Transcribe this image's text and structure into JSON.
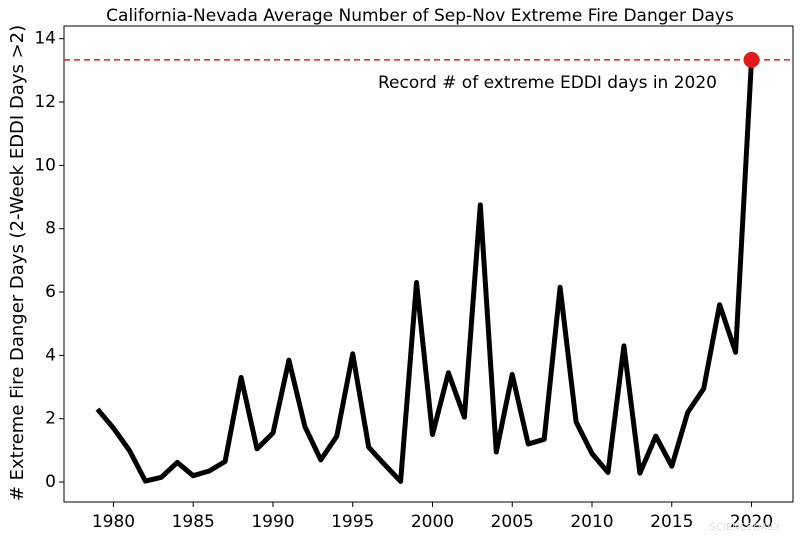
{
  "chart_data": {
    "type": "line",
    "title": "California-Nevada Average Number of Sep-Nov Extreme Fire Danger Days",
    "y_label": "# Extreme Fire Danger Days (2-Week EDDI Days >2)",
    "x": [
      1979,
      1980,
      1981,
      1982,
      1983,
      1984,
      1985,
      1986,
      1987,
      1988,
      1989,
      1990,
      1991,
      1992,
      1993,
      1994,
      1995,
      1996,
      1997,
      1998,
      1999,
      2000,
      2001,
      2002,
      2003,
      2004,
      2005,
      2006,
      2007,
      2008,
      2009,
      2010,
      2011,
      2012,
      2013,
      2014,
      2015,
      2016,
      2017,
      2018,
      2019,
      2020
    ],
    "series": [
      {
        "color": "#000000",
        "values": [
          2.3,
          1.7,
          1.0,
          0.03,
          0.15,
          0.62,
          0.2,
          0.35,
          0.65,
          3.3,
          1.05,
          1.55,
          3.85,
          1.75,
          0.7,
          1.45,
          4.05,
          1.1,
          0.55,
          0.02,
          6.3,
          1.5,
          3.45,
          2.05,
          8.75,
          0.95,
          3.4,
          1.2,
          1.35,
          6.15,
          1.9,
          0.9,
          0.3,
          4.3,
          0.28,
          1.45,
          0.5,
          2.2,
          2.95,
          5.6,
          4.1,
          13.33
        ]
      }
    ],
    "highlight_color": "#e31a1c",
    "reference_line": {
      "value": 13.33,
      "color": "#d62728",
      "label": "Record # of extreme EDDI days in 2020"
    },
    "xlim": [
      1976.9,
      2022.6
    ],
    "ylim": [
      -0.63,
      14.4
    ],
    "xticks": [
      1980,
      1985,
      1990,
      1995,
      2000,
      2005,
      2010,
      2015,
      2020
    ],
    "yticks": [
      0,
      2,
      4,
      6,
      8,
      10,
      12,
      14
    ],
    "watermark": "SCIENCEDAILY"
  }
}
